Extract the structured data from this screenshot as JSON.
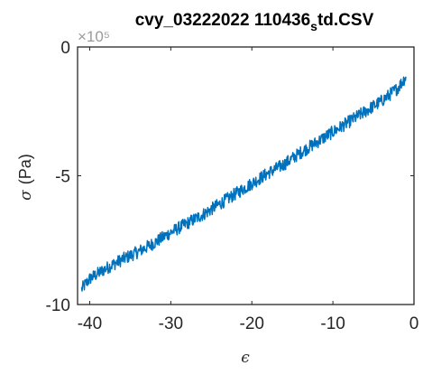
{
  "chart_data": {
    "type": "line",
    "title_main": "cvy_03222022 110436",
    "title_sub": "s",
    "title_end": "td.CSV",
    "xlabel": "ϵ",
    "ylabel_symbol": "σ",
    "ylabel_unit": "(Pa)",
    "y_exponent": "×10⁵",
    "xlim": [
      -41.5,
      0
    ],
    "ylim": [
      -10,
      0
    ],
    "x_ticks": [
      -40,
      -30,
      -20,
      -10,
      0
    ],
    "x_tick_labels": [
      "-40",
      "-30",
      "-20",
      "-10",
      "0"
    ],
    "y_ticks": [
      0,
      -5,
      -10
    ],
    "y_tick_labels": [
      "0",
      "-5",
      "-10"
    ],
    "series": [
      {
        "color": "#0072BD",
        "x": [
          -41.0,
          -40.0,
          -38.0,
          -36.0,
          -34.0,
          -32.0,
          -30.0,
          -28.0,
          -26.0,
          -24.0,
          -22.0,
          -20.0,
          -18.0,
          -16.0,
          -14.0,
          -12.0,
          -10.0,
          -8.0,
          -6.0,
          -4.0,
          -2.0,
          -1.0
        ],
        "y": [
          -9.4,
          -9.0,
          -8.6,
          -8.25,
          -7.95,
          -7.6,
          -7.2,
          -6.85,
          -6.5,
          -6.1,
          -5.7,
          -5.3,
          -4.9,
          -4.55,
          -4.1,
          -3.7,
          -3.3,
          -2.9,
          -2.5,
          -2.1,
          -1.6,
          -1.15
        ]
      }
    ],
    "noise_amplitude": 0.25,
    "grid": false,
    "legend": "none"
  }
}
